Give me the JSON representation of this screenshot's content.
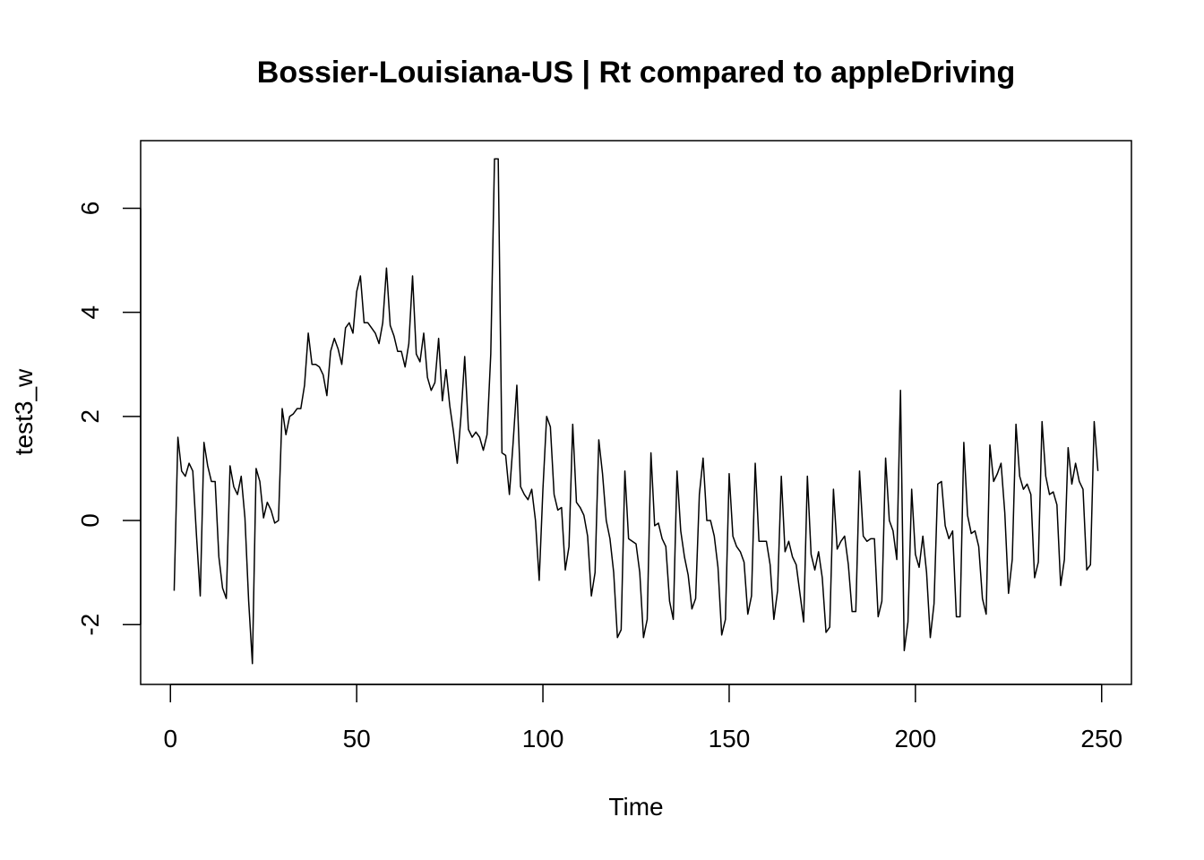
{
  "chart_data": {
    "type": "line",
    "title": "Bossier-Louisiana-US | Rt compared to appleDriving",
    "xlabel": "Time",
    "ylabel": "test3_w",
    "xlim": [
      -8,
      258
    ],
    "ylim": [
      -3.15,
      7.3
    ],
    "x_ticks": [
      0,
      50,
      100,
      150,
      200,
      250
    ],
    "y_ticks": [
      -2,
      0,
      2,
      4,
      6
    ],
    "x_tick_labels": [
      "0",
      "50",
      "100",
      "150",
      "200",
      "250"
    ],
    "y_tick_labels": [
      "-2",
      "0",
      "2",
      "4",
      "6"
    ],
    "grid": false,
    "line_color": "#000000",
    "series": [
      {
        "x_start": 1,
        "values": [
          -1.35,
          1.6,
          0.95,
          0.85,
          1.1,
          0.95,
          -0.3,
          -1.45,
          1.5,
          1.05,
          0.75,
          0.75,
          -0.7,
          -1.3,
          -1.5,
          1.05,
          0.65,
          0.5,
          0.85,
          0.05,
          -1.55,
          -2.75,
          1.0,
          0.75,
          0.05,
          0.35,
          0.2,
          -0.05,
          0.0,
          2.15,
          1.65,
          2.0,
          2.05,
          2.15,
          2.15,
          2.6,
          3.6,
          3.0,
          3.0,
          2.95,
          2.8,
          2.4,
          3.25,
          3.5,
          3.3,
          3.0,
          3.7,
          3.8,
          3.6,
          4.4,
          4.7,
          3.8,
          3.8,
          3.7,
          3.6,
          3.4,
          3.8,
          4.85,
          3.75,
          3.55,
          3.25,
          3.25,
          2.95,
          3.4,
          4.7,
          3.2,
          3.05,
          3.6,
          2.75,
          2.5,
          2.65,
          3.5,
          2.3,
          2.9,
          2.2,
          1.7,
          1.1,
          2.0,
          3.15,
          1.75,
          1.6,
          1.7,
          1.6,
          1.35,
          1.65,
          3.2,
          6.95,
          6.95,
          1.3,
          1.25,
          0.5,
          1.5,
          2.6,
          0.65,
          0.5,
          0.4,
          0.6,
          0.0,
          -1.15,
          0.6,
          2.0,
          1.8,
          0.5,
          0.2,
          0.25,
          -0.95,
          -0.5,
          1.85,
          0.35,
          0.25,
          0.1,
          -0.3,
          -1.45,
          -1.0,
          1.55,
          0.9,
          0.0,
          -0.35,
          -1.0,
          -2.25,
          -2.1,
          0.95,
          -0.35,
          -0.4,
          -0.45,
          -1.0,
          -2.25,
          -1.9,
          1.3,
          -0.1,
          -0.05,
          -0.35,
          -0.5,
          -1.55,
          -1.9,
          0.95,
          -0.2,
          -0.7,
          -1.05,
          -1.7,
          -1.5,
          0.5,
          1.2,
          0.0,
          0.0,
          -0.3,
          -0.9,
          -2.2,
          -1.9,
          0.9,
          -0.3,
          -0.5,
          -0.6,
          -0.8,
          -1.8,
          -1.45,
          1.1,
          -0.4,
          -0.4,
          -0.4,
          -0.85,
          -1.9,
          -1.35,
          0.85,
          -0.6,
          -0.4,
          -0.7,
          -0.85,
          -1.4,
          -1.95,
          0.85,
          -0.65,
          -0.95,
          -0.6,
          -1.1,
          -2.15,
          -2.05,
          0.6,
          -0.55,
          -0.4,
          -0.3,
          -0.85,
          -1.75,
          -1.75,
          0.95,
          -0.3,
          -0.4,
          -0.35,
          -0.35,
          -1.85,
          -1.55,
          1.2,
          0.0,
          -0.2,
          -0.75,
          2.5,
          -2.5,
          -1.95,
          0.6,
          -0.65,
          -0.9,
          -0.3,
          -1.0,
          -2.25,
          -1.6,
          0.7,
          0.75,
          -0.1,
          -0.35,
          -0.2,
          -1.85,
          -1.85,
          1.5,
          0.1,
          -0.25,
          -0.2,
          -0.5,
          -1.5,
          -1.8,
          1.45,
          0.75,
          0.9,
          1.1,
          0.15,
          -1.4,
          -0.75,
          1.85,
          0.85,
          0.6,
          0.7,
          0.5,
          -1.1,
          -0.8,
          1.9,
          0.85,
          0.5,
          0.55,
          0.3,
          -1.25,
          -0.75,
          1.4,
          0.7,
          1.1,
          0.75,
          0.6,
          -0.95,
          -0.85,
          1.9,
          0.95
        ]
      }
    ]
  }
}
